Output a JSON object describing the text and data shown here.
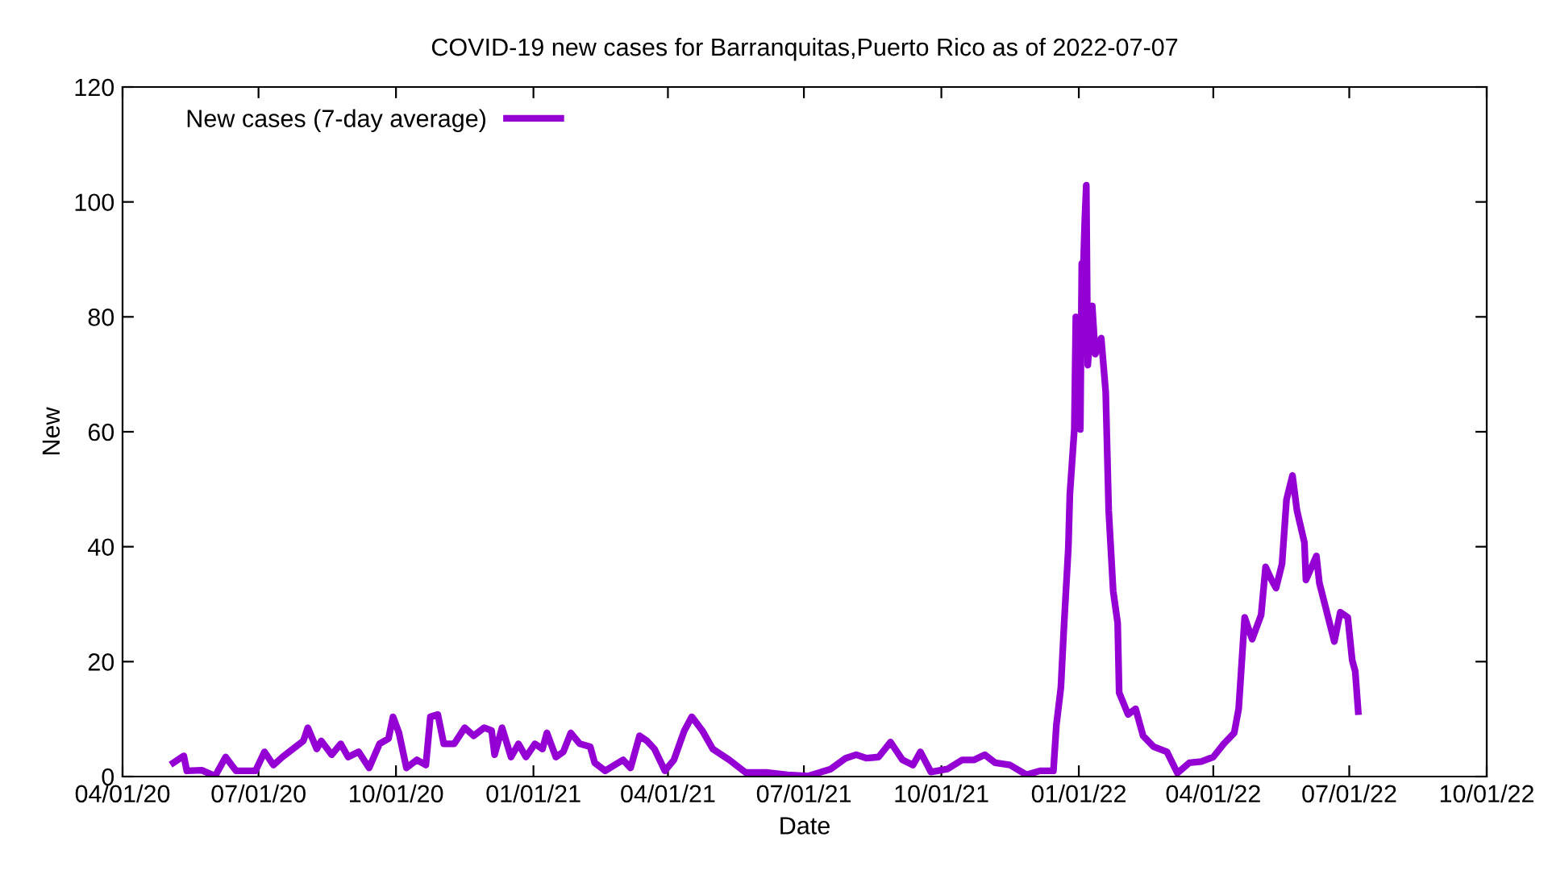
{
  "chart_data": {
    "type": "line",
    "title": "COVID-19 new cases for Barranquitas,Puerto Rico as of 2022-07-07",
    "xlabel": "Date",
    "ylabel": "New",
    "series": [
      {
        "name": "New cases (7-day average)",
        "color": "#9400d3",
        "x": [
          "2020-05-05",
          "2020-05-12",
          "2020-05-14",
          "2020-05-24",
          "2020-06-02",
          "2020-06-09",
          "2020-06-13",
          "2020-06-16",
          "2020-06-29",
          "2020-07-05",
          "2020-07-11",
          "2020-07-17",
          "2020-07-26",
          "2020-07-31",
          "2020-08-03",
          "2020-08-09",
          "2020-08-12",
          "2020-08-19",
          "2020-08-25",
          "2020-08-30",
          "2020-09-06",
          "2020-09-13",
          "2020-09-20",
          "2020-09-26",
          "2020-09-29",
          "2020-10-03",
          "2020-10-08",
          "2020-10-15",
          "2020-10-21",
          "2020-10-24",
          "2020-10-29",
          "2020-11-02",
          "2020-11-09",
          "2020-11-16",
          "2020-11-22",
          "2020-11-29",
          "2020-12-04",
          "2020-12-06",
          "2020-12-11",
          "2020-12-17",
          "2020-12-22",
          "2020-12-27",
          "2021-01-02",
          "2021-01-07",
          "2021-01-10",
          "2021-01-16",
          "2021-01-21",
          "2021-01-26",
          "2021-02-01",
          "2021-02-08",
          "2021-02-11",
          "2021-02-18",
          "2021-03-02",
          "2021-03-07",
          "2021-03-13",
          "2021-03-18",
          "2021-03-23",
          "2021-03-30",
          "2021-04-05",
          "2021-04-12",
          "2021-04-17",
          "2021-04-24",
          "2021-05-01",
          "2021-05-12",
          "2021-05-23",
          "2021-06-06",
          "2021-06-20",
          "2021-07-04",
          "2021-07-19",
          "2021-07-29",
          "2021-08-05",
          "2021-08-12",
          "2021-08-20",
          "2021-08-28",
          "2021-09-05",
          "2021-09-12",
          "2021-09-17",
          "2021-09-24",
          "2021-10-05",
          "2021-10-15",
          "2021-10-23",
          "2021-10-30",
          "2021-11-06",
          "2021-11-16",
          "2021-11-27",
          "2021-12-06",
          "2021-12-15",
          "2021-12-17",
          "2021-12-20",
          "2021-12-22",
          "2021-12-25",
          "2021-12-26",
          "2021-12-29",
          "2021-12-30",
          "2022-01-02",
          "2022-01-03",
          "2022-01-04",
          "2022-01-05",
          "2022-01-06",
          "2022-01-07",
          "2022-01-10",
          "2022-01-12",
          "2022-01-16",
          "2022-01-19",
          "2022-01-21",
          "2022-01-24",
          "2022-01-27",
          "2022-01-28",
          "2022-02-03",
          "2022-02-08",
          "2022-02-13",
          "2022-02-20",
          "2022-03-01",
          "2022-03-08",
          "2022-03-16",
          "2022-03-24",
          "2022-04-01",
          "2022-04-08",
          "2022-04-15",
          "2022-04-18",
          "2022-04-22",
          "2022-04-27",
          "2022-05-03",
          "2022-05-06",
          "2022-05-10",
          "2022-05-13",
          "2022-05-17",
          "2022-05-20",
          "2022-05-24",
          "2022-05-27",
          "2022-06-01",
          "2022-06-02",
          "2022-06-09",
          "2022-06-11",
          "2022-06-16",
          "2022-06-21",
          "2022-06-25",
          "2022-06-30",
          "2022-07-03",
          "2022-07-05",
          "2022-07-07"
        ],
        "values": [
          2.4,
          3.6,
          1.0,
          1.1,
          0.1,
          3.4,
          2.0,
          1.0,
          1.0,
          4.3,
          2.0,
          3.4,
          5.2,
          6.2,
          8.5,
          4.8,
          6.2,
          3.8,
          5.7,
          3.4,
          4.3,
          1.5,
          5.7,
          6.6,
          10.4,
          7.6,
          1.5,
          2.9,
          2.0,
          10.4,
          10.8,
          5.7,
          5.7,
          8.5,
          7.1,
          8.5,
          8.0,
          3.8,
          8.5,
          3.4,
          5.7,
          3.4,
          5.7,
          4.8,
          7.6,
          3.4,
          4.3,
          7.6,
          5.7,
          5.2,
          2.4,
          1.0,
          2.9,
          1.5,
          7.1,
          6.2,
          4.8,
          1.0,
          2.9,
          8.0,
          10.4,
          8.0,
          4.8,
          2.9,
          0.7,
          0.7,
          0.3,
          0.1,
          1.3,
          3.2,
          3.8,
          3.2,
          3.4,
          6.0,
          2.9,
          2.0,
          4.3,
          0.8,
          1.3,
          2.9,
          2.9,
          3.8,
          2.4,
          2.0,
          0.3,
          1.0,
          1.0,
          9.0,
          15.5,
          25.8,
          39.8,
          49.1,
          60.4,
          80,
          60.4,
          89.3,
          88.4,
          96.8,
          102.9,
          71.6,
          81.9,
          73.5,
          76.3,
          66.9,
          46.3,
          32.3,
          26.7,
          14.6,
          10.8,
          11.8,
          7.1,
          5.2,
          4.3,
          0.6,
          2.4,
          2.6,
          3.4,
          5.7,
          7.6,
          11.8,
          27.7,
          23.9,
          28.1,
          36.5,
          34.2,
          32.8,
          37.0,
          48.2,
          52.4,
          46.3,
          40.7,
          34.2,
          38.4,
          33.7,
          28.6,
          23.5,
          28.6,
          27.7,
          20.2,
          18.3,
          11.3
        ]
      }
    ],
    "xlim": [
      "2020-04-01",
      "2022-10-01"
    ],
    "xticks": [
      {
        "value": "2020-04-01",
        "label": "04/01/20"
      },
      {
        "value": "2020-07-01",
        "label": "07/01/20"
      },
      {
        "value": "2020-10-01",
        "label": "10/01/20"
      },
      {
        "value": "2021-01-01",
        "label": "01/01/21"
      },
      {
        "value": "2021-04-01",
        "label": "04/01/21"
      },
      {
        "value": "2021-07-01",
        "label": "07/01/21"
      },
      {
        "value": "2021-10-01",
        "label": "10/01/21"
      },
      {
        "value": "2022-01-01",
        "label": "01/01/22"
      },
      {
        "value": "2022-04-01",
        "label": "04/01/22"
      },
      {
        "value": "2022-07-01",
        "label": "07/01/22"
      },
      {
        "value": "2022-10-01",
        "label": "10/01/22"
      }
    ],
    "ylim": [
      0,
      120
    ],
    "yticks": [
      0,
      20,
      40,
      60,
      80,
      100,
      120
    ],
    "grid": false,
    "legend": "top left",
    "marker": "none",
    "line_style": "solid"
  }
}
